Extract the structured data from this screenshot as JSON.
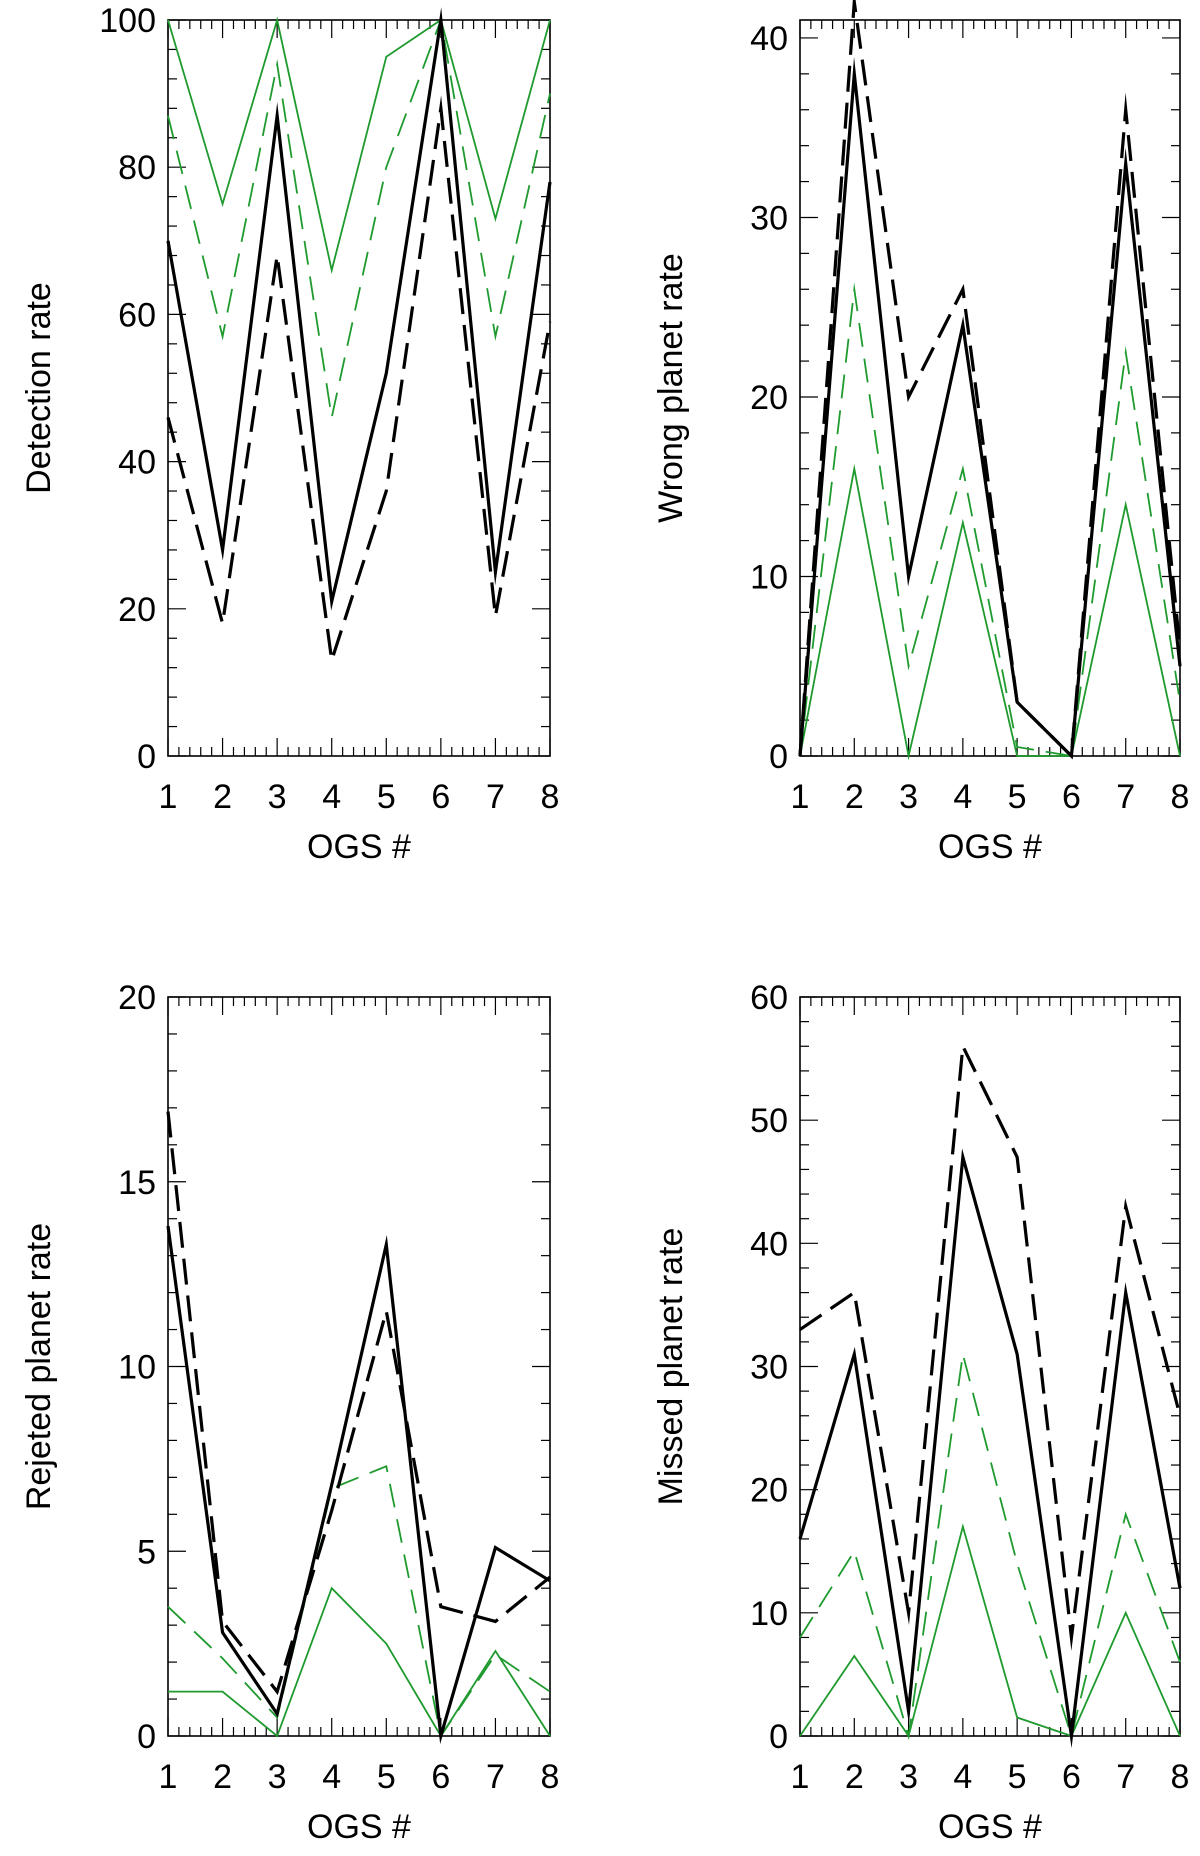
{
  "colors": {
    "black": "#000000",
    "green": "#1f9a2e"
  },
  "line_styles": {
    "black_solid": "black solid thick",
    "black_dashed": "black dashed thick",
    "green_dashed": "green dashed thin",
    "green_solid": "green solid thin"
  },
  "chart_data": [
    {
      "type": "line",
      "xlabel": "OGS #",
      "ylabel": "Detection rate",
      "x": [
        1,
        2,
        3,
        4,
        5,
        6,
        7,
        8
      ],
      "xticks": [
        "1",
        "2",
        "3",
        "4",
        "5",
        "6",
        "7",
        "8"
      ],
      "yticks": [
        "0",
        "20",
        "40",
        "60",
        "80",
        "100"
      ],
      "ylim": [
        0,
        100
      ],
      "series": [
        {
          "name": "black_solid",
          "values": [
            70,
            28,
            87,
            21,
            52,
            100,
            25,
            78
          ]
        },
        {
          "name": "black_dashed",
          "values": [
            46,
            18,
            68,
            13,
            36,
            88,
            19,
            59
          ]
        },
        {
          "name": "green_dashed",
          "values": [
            87,
            57,
            94,
            46,
            80,
            100,
            57,
            90
          ]
        },
        {
          "name": "green_solid",
          "values": [
            100,
            75,
            100,
            66,
            95,
            100,
            73,
            100
          ]
        }
      ]
    },
    {
      "type": "line",
      "xlabel": "OGS #",
      "ylabel": "Wrong planet rate",
      "x": [
        1,
        2,
        3,
        4,
        5,
        6,
        7,
        8
      ],
      "xticks": [
        "1",
        "2",
        "3",
        "4",
        "5",
        "6",
        "7",
        "8"
      ],
      "yticks": [
        "0",
        "10",
        "20",
        "30",
        "40"
      ],
      "ylim": [
        0,
        41
      ],
      "series": [
        {
          "name": "black_solid",
          "values": [
            0,
            38,
            10,
            24,
            3,
            0,
            33,
            5
          ]
        },
        {
          "name": "black_dashed",
          "values": [
            0,
            42,
            20,
            26,
            3,
            0,
            36,
            6
          ]
        },
        {
          "name": "green_dashed",
          "values": [
            0,
            26,
            5,
            16,
            0.5,
            0,
            22.5,
            3
          ]
        },
        {
          "name": "green_solid",
          "values": [
            0,
            16,
            0,
            13,
            0,
            0,
            14,
            0
          ]
        }
      ]
    },
    {
      "type": "line",
      "xlabel": "OGS #",
      "ylabel": "Rejeted planet rate",
      "x": [
        1,
        2,
        3,
        4,
        5,
        6,
        7,
        8
      ],
      "xticks": [
        "1",
        "2",
        "3",
        "4",
        "5",
        "6",
        "7",
        "8"
      ],
      "yticks": [
        "0",
        "5",
        "10",
        "15",
        "20"
      ],
      "ylim": [
        0,
        20
      ],
      "series": [
        {
          "name": "black_solid",
          "values": [
            13.8,
            2.8,
            0.6,
            6.8,
            13.3,
            0,
            5.1,
            4.2
          ]
        },
        {
          "name": "black_dashed",
          "values": [
            16.9,
            3.1,
            1.2,
            6.1,
            11.5,
            3.5,
            3.1,
            4.3
          ]
        },
        {
          "name": "green_dashed",
          "values": [
            3.5,
            2.1,
            0.5,
            6.7,
            7.3,
            0,
            2.2,
            1.2
          ]
        },
        {
          "name": "green_solid",
          "values": [
            1.2,
            1.2,
            0,
            4.0,
            2.5,
            0,
            2.3,
            0
          ]
        }
      ]
    },
    {
      "type": "line",
      "xlabel": "OGS #",
      "ylabel": "Missed planet rate",
      "x": [
        1,
        2,
        3,
        4,
        5,
        6,
        7,
        8
      ],
      "xticks": [
        "1",
        "2",
        "3",
        "4",
        "5",
        "6",
        "7",
        "8"
      ],
      "yticks": [
        "0",
        "10",
        "20",
        "30",
        "40",
        "50",
        "60"
      ],
      "ylim": [
        0,
        60
      ],
      "series": [
        {
          "name": "black_solid",
          "values": [
            16,
            31,
            2,
            47,
            31,
            0,
            36,
            12
          ]
        },
        {
          "name": "black_dashed",
          "values": [
            33,
            36,
            10,
            56,
            47,
            8,
            43,
            26
          ]
        },
        {
          "name": "green_dashed",
          "values": [
            8,
            15,
            0,
            31,
            14,
            0,
            18,
            6
          ]
        },
        {
          "name": "green_solid",
          "values": [
            0,
            6.5,
            0,
            17,
            1.5,
            0,
            10,
            0
          ]
        }
      ]
    }
  ]
}
